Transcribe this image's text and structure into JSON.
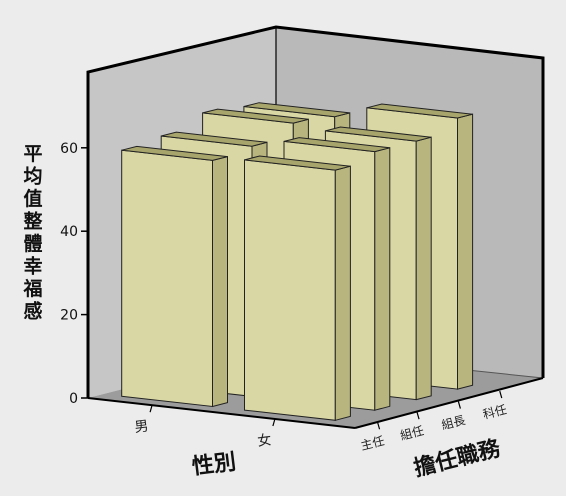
{
  "chart_data": {
    "type": "bar",
    "subtype": "3d-clustered",
    "title": "",
    "ylabel": "平均值整體幸福感",
    "xlabel": "性別",
    "zlabel": "擔任職務",
    "ylim": [
      0,
      80
    ],
    "yticks": [
      0,
      20,
      40,
      60
    ],
    "grid": false,
    "legend": "none",
    "x_categories": [
      "男",
      "女"
    ],
    "z_categories": [
      "主任",
      "組任",
      "組長",
      "科任"
    ],
    "series": [
      {
        "name": "主任",
        "values": [
          59,
          60
        ]
      },
      {
        "name": "組任",
        "values": [
          60,
          62
        ]
      },
      {
        "name": "組長",
        "values": [
          63,
          62
        ]
      },
      {
        "name": "科任",
        "values": [
          62,
          65
        ]
      }
    ],
    "colors": {
      "background": "#ececec",
      "left_wall": "#c6c6c6",
      "back_wall": "#b9b9b9",
      "floor": "#9c9c9c",
      "bar_front": "#d9d7a4",
      "bar_top": "#a8a56c",
      "bar_side": "#b8b57f",
      "axis": "#000000"
    }
  }
}
